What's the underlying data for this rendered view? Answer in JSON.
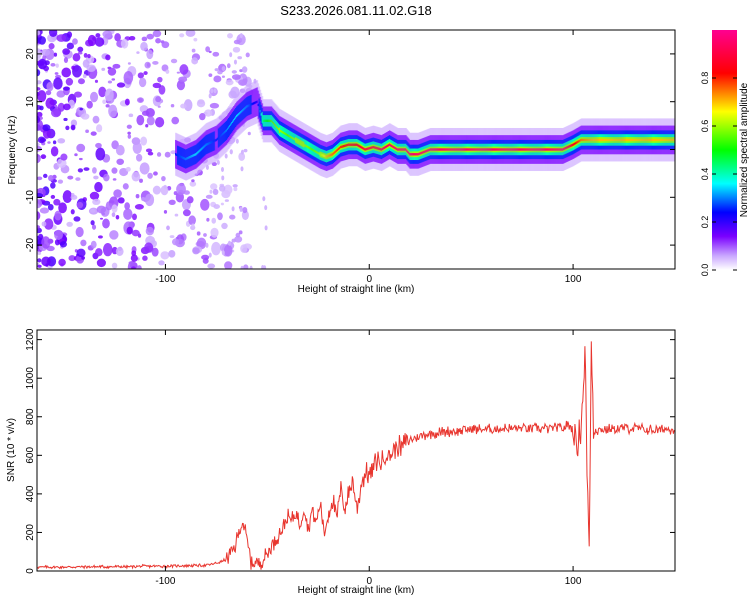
{
  "title": "S233.2026.081.11.02.G18",
  "chart_data": [
    {
      "type": "heatmap",
      "title": "S233.2026.081.11.02.G18",
      "xlabel": "Height of straight line (km)",
      "ylabel": "Frequency (Hz)",
      "xlim": [
        -163,
        150
      ],
      "ylim": [
        -25,
        25
      ],
      "x_ticks": [
        -100,
        0,
        100
      ],
      "y_ticks": [
        -20,
        -10,
        0,
        10,
        20
      ],
      "grid": false,
      "ridge": {
        "x": [
          -95,
          -90,
          -85,
          -80,
          -75,
          -70,
          -65,
          -60,
          -55,
          -52,
          -48,
          -44,
          -40,
          -36,
          -32,
          -28,
          -24,
          -21,
          -18,
          -14,
          -10,
          -6,
          -2,
          2,
          6,
          10,
          14,
          18,
          20,
          24,
          30,
          40,
          50,
          60,
          70,
          80,
          90,
          95,
          100,
          104,
          110,
          120,
          130,
          140,
          150
        ],
        "freq_hz": [
          -1,
          -2,
          -1,
          1,
          2,
          4,
          7,
          9,
          10,
          6,
          6,
          4,
          3,
          2,
          1,
          0,
          -1,
          -1.5,
          -1,
          0.5,
          1,
          1,
          0,
          0.5,
          0,
          1,
          0,
          0,
          -1,
          -1,
          0,
          0,
          0,
          0,
          0,
          0,
          0,
          0,
          1,
          2,
          2,
          2,
          2,
          2,
          2
        ],
        "amplitude": [
          0.25,
          0.3,
          0.35,
          0.3,
          0.25,
          0.3,
          0.35,
          0.3,
          0.2,
          0.45,
          0.55,
          0.6,
          0.55,
          0.6,
          0.6,
          0.55,
          0.6,
          0.7,
          0.75,
          0.8,
          0.85,
          0.85,
          0.9,
          0.9,
          0.92,
          0.93,
          0.95,
          0.95,
          0.95,
          0.95,
          0.95,
          0.95,
          0.95,
          0.95,
          0.95,
          0.95,
          0.95,
          0.95,
          0.85,
          0.75,
          0.7,
          0.7,
          0.7,
          0.7,
          0.7
        ]
      },
      "colorbar": {
        "label": "Normalized spectral amplitude",
        "ticks": [
          "0.0",
          "0.2",
          "0.4",
          "0.6",
          "0.8"
        ],
        "tick_values": [
          0,
          0.2,
          0.4,
          0.6,
          0.8
        ],
        "range": [
          0,
          1
        ],
        "colors": [
          "#ffffff",
          "#7a00ff",
          "#0000ff",
          "#00ffff",
          "#00ff00",
          "#ffff00",
          "#ff0000",
          "#ff0090"
        ]
      }
    },
    {
      "type": "line",
      "title": "",
      "xlabel": "Height of straight line (km)",
      "ylabel": "SNR (10 * v/v)",
      "xlim": [
        -163,
        150
      ],
      "ylim": [
        0,
        1250
      ],
      "x_ticks": [
        -100,
        0,
        100
      ],
      "y_ticks": [
        0,
        200,
        400,
        600,
        800,
        1000,
        1200
      ],
      "grid": false,
      "series": [
        {
          "name": "SNR",
          "color": "#e8352e",
          "x": [
            -163,
            -150,
            -140,
            -130,
            -120,
            -110,
            -100,
            -90,
            -80,
            -75,
            -70,
            -66,
            -64,
            -62,
            -60,
            -58,
            -56,
            -54,
            -52,
            -50,
            -48,
            -45,
            -42,
            -40,
            -38,
            -36,
            -34,
            -32,
            -30,
            -28,
            -26,
            -24,
            -22,
            -20,
            -18,
            -16,
            -14,
            -12,
            -10,
            -8,
            -6,
            -4,
            -2,
            0,
            2,
            4,
            6,
            8,
            10,
            12,
            14,
            16,
            18,
            20,
            22,
            25,
            28,
            32,
            36,
            40,
            45,
            50,
            55,
            60,
            65,
            70,
            75,
            80,
            85,
            90,
            95,
            98,
            100,
            102,
            104,
            106,
            107,
            108,
            109,
            110,
            112,
            115,
            120,
            125,
            130,
            135,
            140,
            145,
            150
          ],
          "values": [
            20,
            20,
            22,
            22,
            22,
            25,
            25,
            28,
            30,
            40,
            60,
            120,
            200,
            260,
            160,
            50,
            40,
            45,
            60,
            90,
            130,
            180,
            230,
            280,
            260,
            300,
            240,
            330,
            210,
            320,
            250,
            350,
            190,
            300,
            380,
            260,
            420,
            330,
            400,
            470,
            310,
            450,
            510,
            500,
            540,
            580,
            560,
            610,
            590,
            630,
            650,
            640,
            670,
            680,
            690,
            700,
            710,
            715,
            720,
            725,
            730,
            735,
            735,
            735,
            738,
            740,
            740,
            740,
            740,
            740,
            740,
            760,
            720,
            650,
            760,
            1150,
            380,
            160,
            1230,
            750,
            730,
            735,
            735,
            740,
            740,
            735,
            730,
            735,
            740
          ]
        }
      ]
    }
  ]
}
